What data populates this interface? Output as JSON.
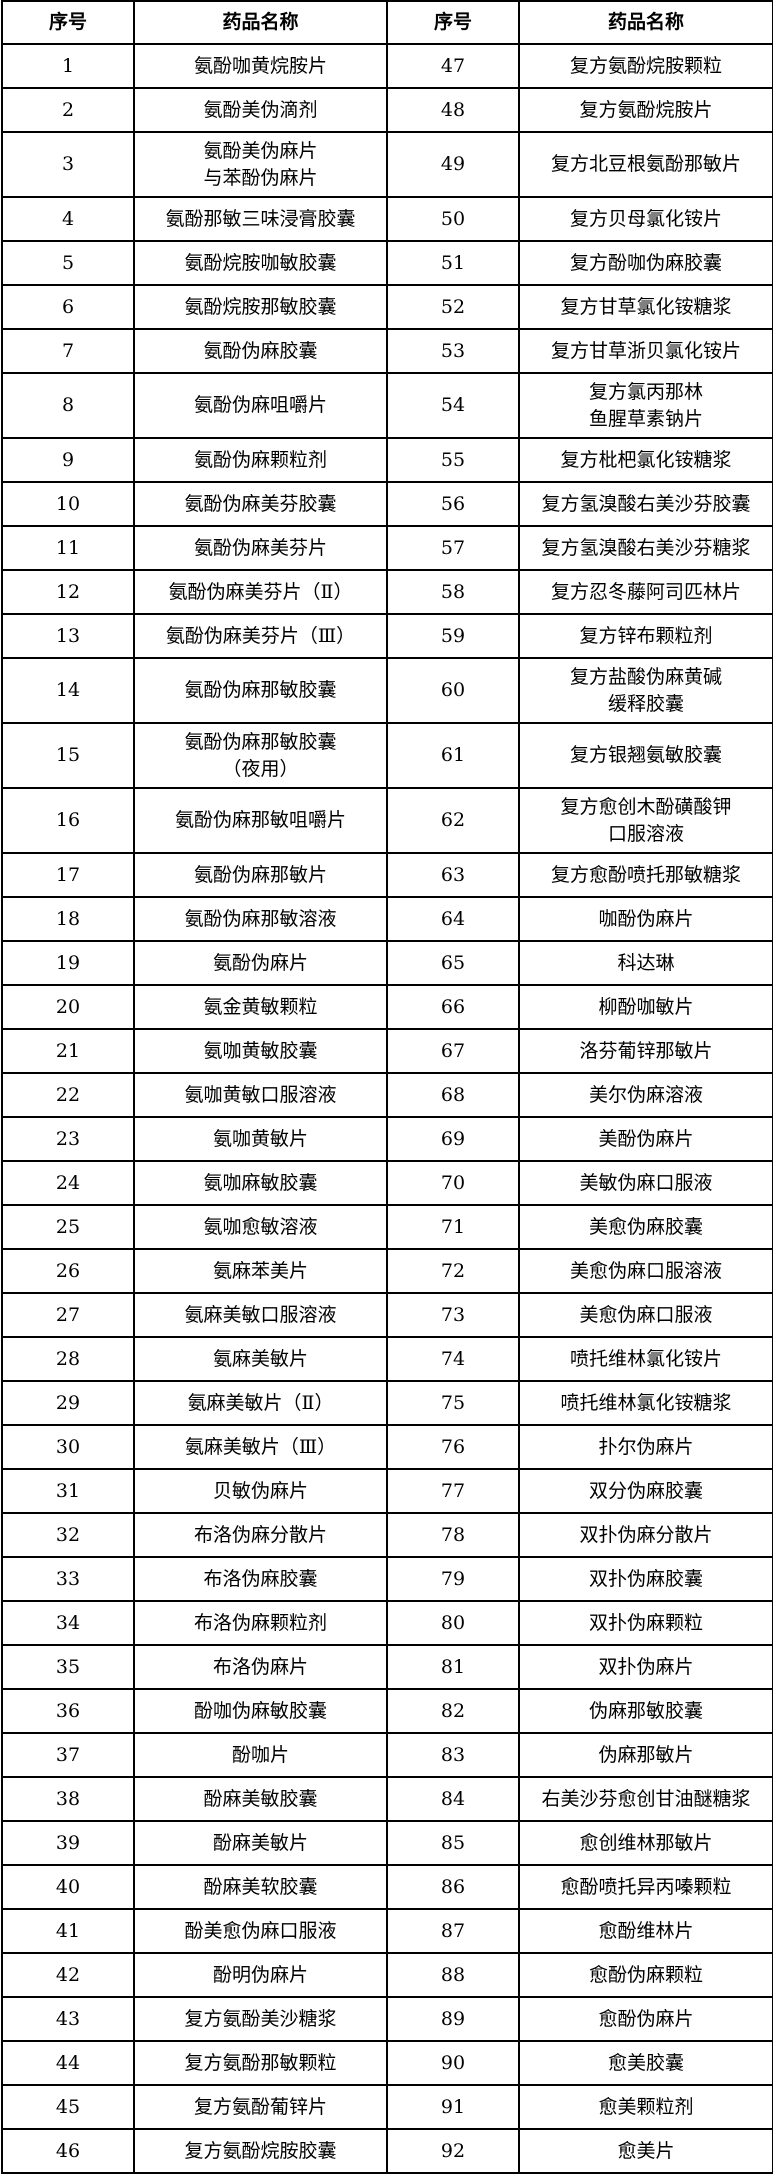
{
  "headers": [
    "序号",
    "药品名称",
    "序号",
    "药品名称"
  ],
  "rows": [
    [
      1,
      "氨酚咖黄烷胺片",
      47,
      "复方氨酚烷胺颗粒"
    ],
    [
      2,
      "氨酚美伪滴剂",
      48,
      "复方氨酚烷胺片"
    ],
    [
      3,
      "氨酚美伪麻片\n与苯酚伪麻片",
      49,
      "复方北豆根氨酚那敏片"
    ],
    [
      4,
      "氨酚那敏三味浸膏胶囊",
      50,
      "复方贝母氯化铵片"
    ],
    [
      5,
      "氨酚烷胺咖敏胶囊",
      51,
      "复方酚咖伪麻胶囊"
    ],
    [
      6,
      "氨酚烷胺那敏胶囊",
      52,
      "复方甘草氯化铵糖浆"
    ],
    [
      7,
      "氨酚伪麻胶囊",
      53,
      "复方甘草浙贝氯化铵片"
    ],
    [
      8,
      "氨酚伪麻咀嚼片",
      54,
      "复方氯丙那林\n鱼腥草素钠片"
    ],
    [
      9,
      "氨酚伪麻颗粒剂",
      55,
      "复方枇杷氯化铵糖浆"
    ],
    [
      10,
      "氨酚伪麻美芬胶囊",
      56,
      "复方氢溴酸右美沙芬胶囊"
    ],
    [
      11,
      "氨酚伪麻美芬片",
      57,
      "复方氢溴酸右美沙芬糖浆"
    ],
    [
      12,
      "氨酚伪麻美芬片（Ⅱ）",
      58,
      "复方忍冬藤阿司匹林片"
    ],
    [
      13,
      "氨酚伪麻美芬片（Ⅲ）",
      59,
      "复方锌布颗粒剂"
    ],
    [
      14,
      "氨酚伪麻那敏胶囊",
      60,
      "复方盐酸伪麻黄碱\n缓释胶囊"
    ],
    [
      15,
      "氨酚伪麻那敏胶囊\n（夜用）",
      61,
      "复方银翘氨敏胶囊"
    ],
    [
      16,
      "氨酚伪麻那敏咀嚼片",
      62,
      "复方愈创木酚磺酸钾\n口服溶液"
    ],
    [
      17,
      "氨酚伪麻那敏片",
      63,
      "复方愈酚喷托那敏糖浆"
    ],
    [
      18,
      "氨酚伪麻那敏溶液",
      64,
      "咖酚伪麻片"
    ],
    [
      19,
      "氨酚伪麻片",
      65,
      "科达琳"
    ],
    [
      20,
      "氨金黄敏颗粒",
      66,
      "柳酚咖敏片"
    ],
    [
      21,
      "氨咖黄敏胶囊",
      67,
      "洛芬葡锌那敏片"
    ],
    [
      22,
      "氨咖黄敏口服溶液",
      68,
      "美尔伪麻溶液"
    ],
    [
      23,
      "氨咖黄敏片",
      69,
      "美酚伪麻片"
    ],
    [
      24,
      "氨咖麻敏胶囊",
      70,
      "美敏伪麻口服液"
    ],
    [
      25,
      "氨咖愈敏溶液",
      71,
      "美愈伪麻胶囊"
    ],
    [
      26,
      "氨麻苯美片",
      72,
      "美愈伪麻口服溶液"
    ],
    [
      27,
      "氨麻美敏口服溶液",
      73,
      "美愈伪麻口服液"
    ],
    [
      28,
      "氨麻美敏片",
      74,
      "喷托维林氯化铵片"
    ],
    [
      29,
      "氨麻美敏片（Ⅱ）",
      75,
      "喷托维林氯化铵糖浆"
    ],
    [
      30,
      "氨麻美敏片（Ⅲ）",
      76,
      "扑尔伪麻片"
    ],
    [
      31,
      "贝敏伪麻片",
      77,
      "双分伪麻胶囊"
    ],
    [
      32,
      "布洛伪麻分散片",
      78,
      "双扑伪麻分散片"
    ],
    [
      33,
      "布洛伪麻胶囊",
      79,
      "双扑伪麻胶囊"
    ],
    [
      34,
      "布洛伪麻颗粒剂",
      80,
      "双扑伪麻颗粒"
    ],
    [
      35,
      "布洛伪麻片",
      81,
      "双扑伪麻片"
    ],
    [
      36,
      "酚咖伪麻敏胶囊",
      82,
      "伪麻那敏胶囊"
    ],
    [
      37,
      "酚咖片",
      83,
      "伪麻那敏片"
    ],
    [
      38,
      "酚麻美敏胶囊",
      84,
      "右美沙芬愈创甘油醚糖浆"
    ],
    [
      39,
      "酚麻美敏片",
      85,
      "愈创维林那敏片"
    ],
    [
      40,
      "酚麻美软胶囊",
      86,
      "愈酚喷托异丙嗪颗粒"
    ],
    [
      41,
      "酚美愈伪麻口服液",
      87,
      "愈酚维林片"
    ],
    [
      42,
      "酚明伪麻片",
      88,
      "愈酚伪麻颗粒"
    ],
    [
      43,
      "复方氨酚美沙糖浆",
      89,
      "愈酚伪麻片"
    ],
    [
      44,
      "复方氨酚那敏颗粒",
      90,
      "愈美胶囊"
    ],
    [
      45,
      "复方氨酚葡锌片",
      91,
      "愈美颗粒剂"
    ],
    [
      46,
      "复方氨酚烷胺胶囊",
      92,
      "愈美片"
    ]
  ]
}
